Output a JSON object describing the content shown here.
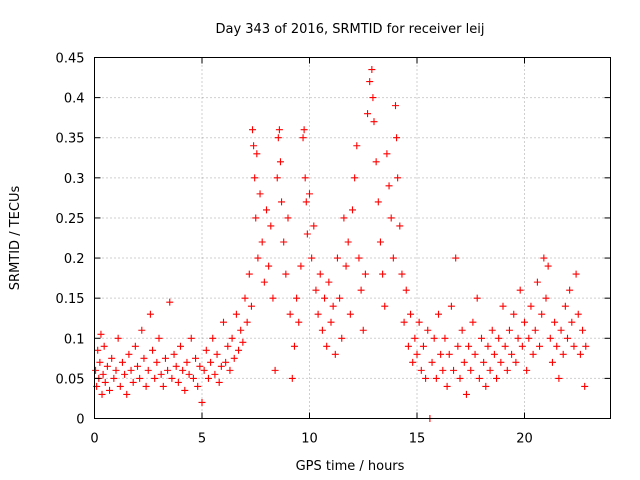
{
  "chart_data": {
    "type": "scatter",
    "title": "Day 343 of 2016, SRMTID for receiver leij",
    "xlabel": "GPS time / hours",
    "ylabel": "SRMTID / TECUs",
    "xlim": [
      0,
      24
    ],
    "ylim": [
      0,
      0.45
    ],
    "xticks": [
      0,
      5,
      10,
      15,
      20
    ],
    "xtick_labels": [
      "0",
      "5",
      "10",
      "15",
      "20"
    ],
    "yticks": [
      0,
      0.05,
      0.1,
      0.15,
      0.2,
      0.25,
      0.3,
      0.35,
      0.4,
      0.45
    ],
    "ytick_labels": [
      "0",
      "0.05",
      "0.1",
      "0.15",
      "0.2",
      "0.25",
      "0.3",
      "0.35",
      "0.4",
      "0.45"
    ],
    "grid": true,
    "marker": "+",
    "marker_color": "#ff0000",
    "series": [
      {
        "name": "leij",
        "points": [
          [
            0.05,
            0.06
          ],
          [
            0.1,
            0.04
          ],
          [
            0.15,
            0.085
          ],
          [
            0.2,
            0.05
          ],
          [
            0.25,
            0.07
          ],
          [
            0.3,
            0.105
          ],
          [
            0.35,
            0.03
          ],
          [
            0.4,
            0.055
          ],
          [
            0.45,
            0.09
          ],
          [
            0.5,
            0.045
          ],
          [
            0.6,
            0.065
          ],
          [
            0.7,
            0.035
          ],
          [
            0.8,
            0.075
          ],
          [
            0.9,
            0.05
          ],
          [
            1.0,
            0.06
          ],
          [
            1.1,
            0.1
          ],
          [
            1.2,
            0.04
          ],
          [
            1.3,
            0.07
          ],
          [
            1.4,
            0.055
          ],
          [
            1.5,
            0.03
          ],
          [
            1.6,
            0.08
          ],
          [
            1.7,
            0.06
          ],
          [
            1.8,
            0.045
          ],
          [
            1.9,
            0.09
          ],
          [
            2.0,
            0.065
          ],
          [
            2.1,
            0.05
          ],
          [
            2.2,
            0.11
          ],
          [
            2.3,
            0.075
          ],
          [
            2.4,
            0.04
          ],
          [
            2.5,
            0.06
          ],
          [
            2.6,
            0.13
          ],
          [
            2.7,
            0.085
          ],
          [
            2.8,
            0.05
          ],
          [
            2.9,
            0.07
          ],
          [
            3.0,
            0.1
          ],
          [
            3.1,
            0.055
          ],
          [
            3.2,
            0.04
          ],
          [
            3.3,
            0.075
          ],
          [
            3.4,
            0.06
          ],
          [
            3.5,
            0.145
          ],
          [
            3.6,
            0.05
          ],
          [
            3.7,
            0.08
          ],
          [
            3.8,
            0.065
          ],
          [
            3.9,
            0.045
          ],
          [
            4.0,
            0.09
          ],
          [
            4.1,
            0.06
          ],
          [
            4.2,
            0.035
          ],
          [
            4.3,
            0.07
          ],
          [
            4.4,
            0.055
          ],
          [
            4.5,
            0.1
          ],
          [
            4.6,
            0.05
          ],
          [
            4.7,
            0.075
          ],
          [
            4.8,
            0.04
          ],
          [
            4.9,
            0.065
          ],
          [
            5.0,
            0.02
          ],
          [
            5.1,
            0.06
          ],
          [
            5.2,
            0.085
          ],
          [
            5.3,
            0.05
          ],
          [
            5.4,
            0.07
          ],
          [
            5.5,
            0.1
          ],
          [
            5.6,
            0.055
          ],
          [
            5.7,
            0.08
          ],
          [
            5.8,
            0.045
          ],
          [
            5.9,
            0.065
          ],
          [
            6.0,
            0.12
          ],
          [
            6.1,
            0.07
          ],
          [
            6.2,
            0.09
          ],
          [
            6.3,
            0.06
          ],
          [
            6.4,
            0.1
          ],
          [
            6.5,
            0.075
          ],
          [
            6.6,
            0.13
          ],
          [
            6.7,
            0.085
          ],
          [
            6.8,
            0.11
          ],
          [
            6.9,
            0.095
          ],
          [
            7.0,
            0.15
          ],
          [
            7.1,
            0.12
          ],
          [
            7.2,
            0.18
          ],
          [
            7.3,
            0.14
          ],
          [
            7.35,
            0.36
          ],
          [
            7.4,
            0.34
          ],
          [
            7.45,
            0.3
          ],
          [
            7.5,
            0.25
          ],
          [
            7.55,
            0.33
          ],
          [
            7.6,
            0.2
          ],
          [
            7.7,
            0.28
          ],
          [
            7.8,
            0.22
          ],
          [
            7.9,
            0.17
          ],
          [
            8.0,
            0.26
          ],
          [
            8.1,
            0.19
          ],
          [
            8.2,
            0.24
          ],
          [
            8.3,
            0.15
          ],
          [
            8.4,
            0.06
          ],
          [
            8.5,
            0.3
          ],
          [
            8.55,
            0.35
          ],
          [
            8.6,
            0.36
          ],
          [
            8.65,
            0.32
          ],
          [
            8.7,
            0.27
          ],
          [
            8.8,
            0.22
          ],
          [
            8.9,
            0.18
          ],
          [
            9.0,
            0.25
          ],
          [
            9.1,
            0.13
          ],
          [
            9.2,
            0.05
          ],
          [
            9.3,
            0.09
          ],
          [
            9.4,
            0.15
          ],
          [
            9.5,
            0.12
          ],
          [
            9.6,
            0.19
          ],
          [
            9.7,
            0.35
          ],
          [
            9.75,
            0.36
          ],
          [
            9.8,
            0.3
          ],
          [
            9.85,
            0.27
          ],
          [
            9.9,
            0.23
          ],
          [
            10.0,
            0.28
          ],
          [
            10.1,
            0.2
          ],
          [
            10.2,
            0.24
          ],
          [
            10.3,
            0.16
          ],
          [
            10.4,
            0.13
          ],
          [
            10.5,
            0.18
          ],
          [
            10.6,
            0.11
          ],
          [
            10.7,
            0.15
          ],
          [
            10.8,
            0.09
          ],
          [
            10.9,
            0.17
          ],
          [
            11.0,
            0.12
          ],
          [
            11.1,
            0.14
          ],
          [
            11.2,
            0.08
          ],
          [
            11.3,
            0.2
          ],
          [
            11.4,
            0.15
          ],
          [
            11.5,
            0.1
          ],
          [
            11.6,
            0.25
          ],
          [
            11.7,
            0.19
          ],
          [
            11.8,
            0.22
          ],
          [
            11.9,
            0.13
          ],
          [
            12.0,
            0.26
          ],
          [
            12.1,
            0.3
          ],
          [
            12.2,
            0.34
          ],
          [
            12.3,
            0.2
          ],
          [
            12.4,
            0.16
          ],
          [
            12.5,
            0.11
          ],
          [
            12.6,
            0.18
          ],
          [
            12.7,
            0.38
          ],
          [
            12.8,
            0.42
          ],
          [
            12.9,
            0.435
          ],
          [
            12.95,
            0.4
          ],
          [
            13.0,
            0.37
          ],
          [
            13.1,
            0.32
          ],
          [
            13.2,
            0.27
          ],
          [
            13.3,
            0.22
          ],
          [
            13.4,
            0.18
          ],
          [
            13.5,
            0.14
          ],
          [
            13.6,
            0.33
          ],
          [
            13.7,
            0.29
          ],
          [
            13.8,
            0.25
          ],
          [
            13.9,
            0.2
          ],
          [
            14.0,
            0.39
          ],
          [
            14.05,
            0.35
          ],
          [
            14.1,
            0.3
          ],
          [
            14.2,
            0.24
          ],
          [
            14.3,
            0.18
          ],
          [
            14.4,
            0.12
          ],
          [
            14.5,
            0.16
          ],
          [
            14.6,
            0.09
          ],
          [
            14.7,
            0.13
          ],
          [
            14.8,
            0.07
          ],
          [
            14.9,
            0.1
          ],
          [
            15.0,
            0.08
          ],
          [
            15.1,
            0.12
          ],
          [
            15.2,
            0.06
          ],
          [
            15.3,
            0.09
          ],
          [
            15.4,
            0.05
          ],
          [
            15.5,
            0.11
          ],
          [
            15.6,
            0.0
          ],
          [
            15.7,
            0.07
          ],
          [
            15.8,
            0.1
          ],
          [
            15.9,
            0.05
          ],
          [
            16.0,
            0.13
          ],
          [
            16.1,
            0.08
          ],
          [
            16.2,
            0.06
          ],
          [
            16.3,
            0.1
          ],
          [
            16.4,
            0.04
          ],
          [
            16.5,
            0.08
          ],
          [
            16.6,
            0.14
          ],
          [
            16.7,
            0.06
          ],
          [
            16.8,
            0.2
          ],
          [
            16.9,
            0.09
          ],
          [
            17.0,
            0.05
          ],
          [
            17.1,
            0.11
          ],
          [
            17.2,
            0.07
          ],
          [
            17.3,
            0.03
          ],
          [
            17.4,
            0.09
          ],
          [
            17.5,
            0.06
          ],
          [
            17.6,
            0.12
          ],
          [
            17.7,
            0.08
          ],
          [
            17.8,
            0.15
          ],
          [
            17.9,
            0.05
          ],
          [
            18.0,
            0.1
          ],
          [
            18.1,
            0.07
          ],
          [
            18.2,
            0.04
          ],
          [
            18.3,
            0.09
          ],
          [
            18.4,
            0.06
          ],
          [
            18.5,
            0.11
          ],
          [
            18.6,
            0.08
          ],
          [
            18.7,
            0.05
          ],
          [
            18.8,
            0.1
          ],
          [
            18.9,
            0.07
          ],
          [
            19.0,
            0.14
          ],
          [
            19.1,
            0.09
          ],
          [
            19.2,
            0.06
          ],
          [
            19.3,
            0.11
          ],
          [
            19.4,
            0.08
          ],
          [
            19.5,
            0.13
          ],
          [
            19.6,
            0.07
          ],
          [
            19.7,
            0.1
          ],
          [
            19.8,
            0.16
          ],
          [
            19.9,
            0.09
          ],
          [
            20.0,
            0.12
          ],
          [
            20.1,
            0.06
          ],
          [
            20.2,
            0.1
          ],
          [
            20.3,
            0.14
          ],
          [
            20.4,
            0.08
          ],
          [
            20.5,
            0.11
          ],
          [
            20.6,
            0.17
          ],
          [
            20.7,
            0.09
          ],
          [
            20.8,
            0.13
          ],
          [
            20.9,
            0.2
          ],
          [
            21.0,
            0.15
          ],
          [
            21.1,
            0.19
          ],
          [
            21.2,
            0.1
          ],
          [
            21.3,
            0.07
          ],
          [
            21.4,
            0.12
          ],
          [
            21.5,
            0.09
          ],
          [
            21.6,
            0.05
          ],
          [
            21.7,
            0.11
          ],
          [
            21.8,
            0.08
          ],
          [
            21.9,
            0.14
          ],
          [
            22.0,
            0.1
          ],
          [
            22.1,
            0.16
          ],
          [
            22.2,
            0.12
          ],
          [
            22.3,
            0.09
          ],
          [
            22.4,
            0.18
          ],
          [
            22.5,
            0.13
          ],
          [
            22.6,
            0.08
          ],
          [
            22.7,
            0.11
          ],
          [
            22.8,
            0.04
          ],
          [
            22.85,
            0.09
          ]
        ]
      }
    ]
  }
}
